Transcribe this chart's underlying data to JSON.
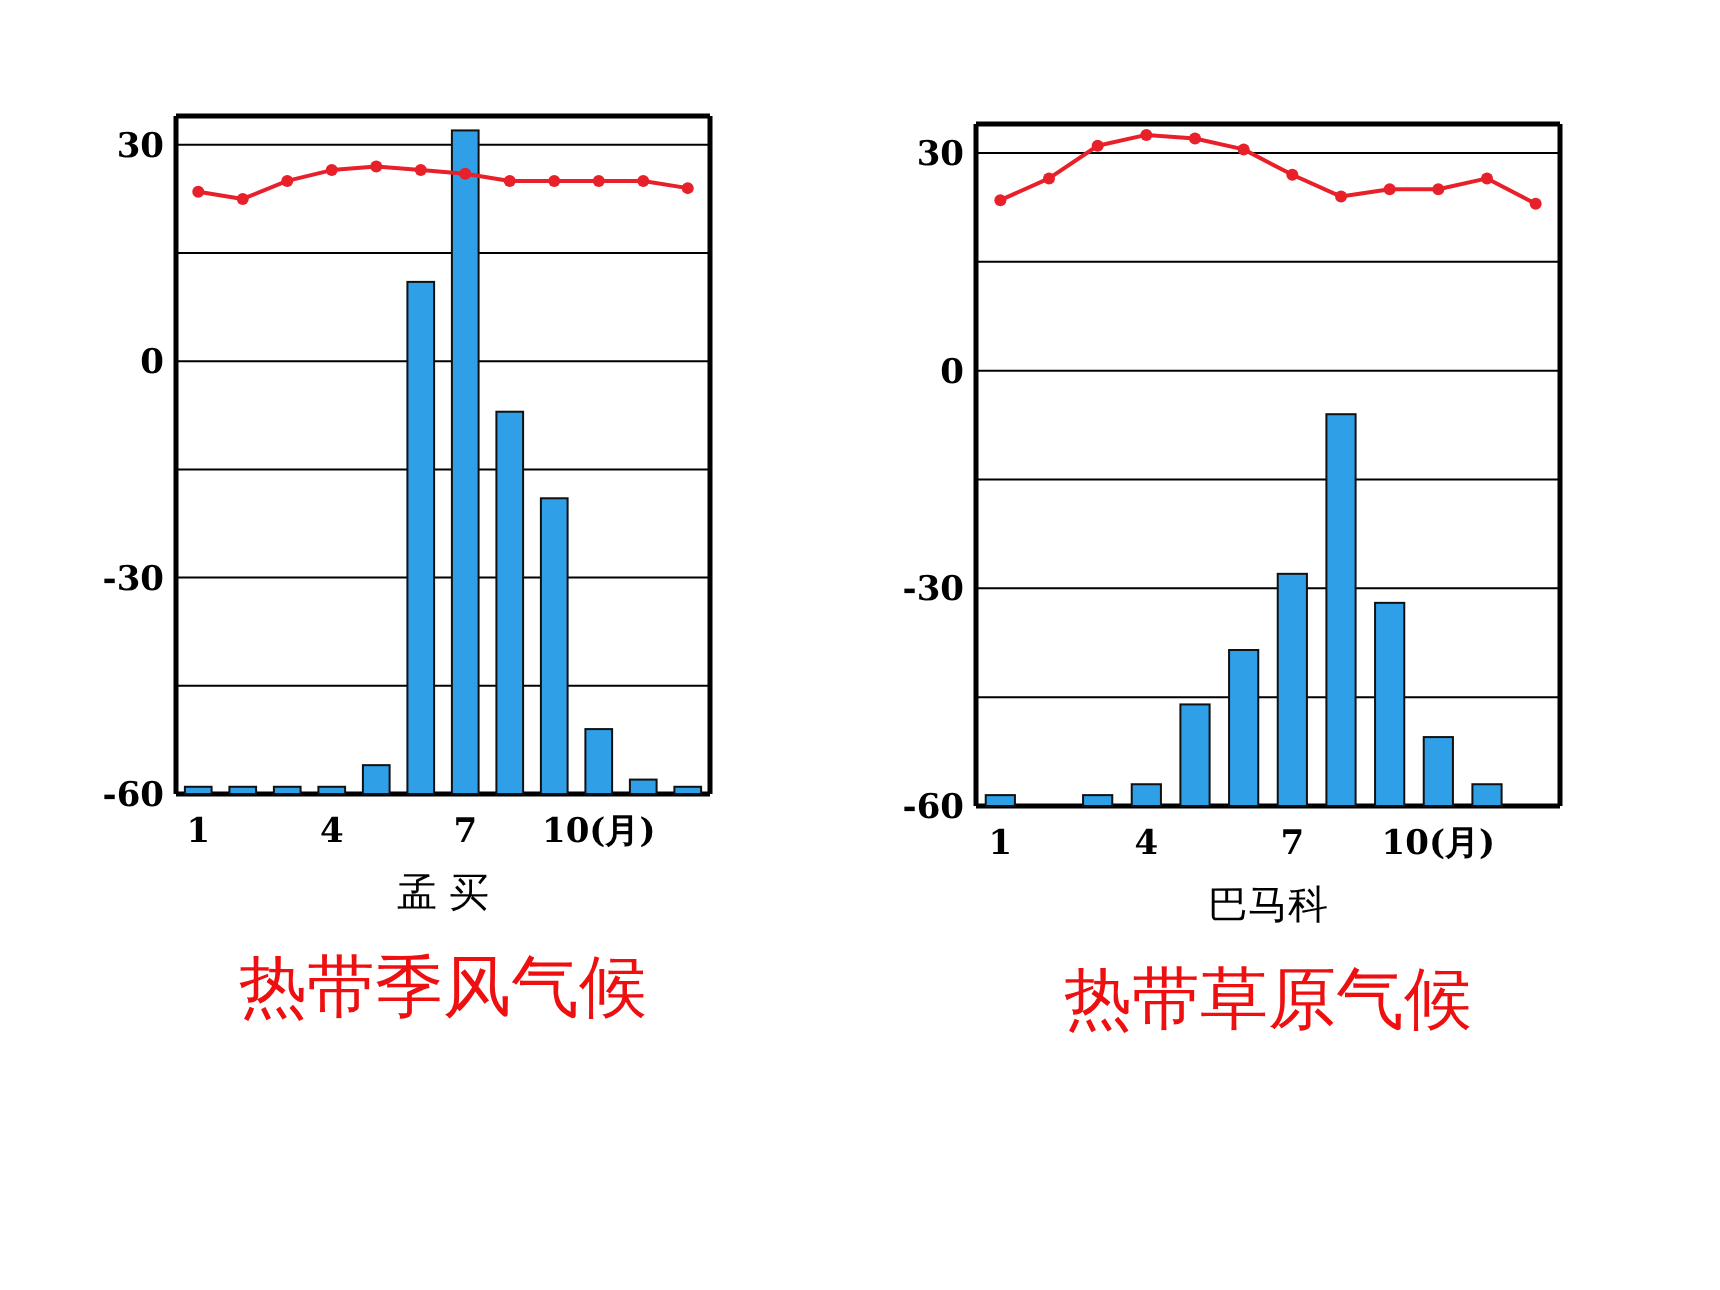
{
  "chart_data": [
    {
      "type": "bar",
      "title": "热带季风气候",
      "xlabel": "孟 买",
      "categories": [
        "1",
        null,
        null,
        "4",
        null,
        null,
        "7",
        null,
        null,
        "10(月)",
        null,
        null
      ],
      "series": [
        {
          "type": "bar",
          "color": "#2f9fe8",
          "base": [
            -60,
            -60,
            -60,
            -60,
            -60,
            -60,
            -60,
            -60,
            -60,
            -60,
            -60,
            -60
          ],
          "values": [
            1,
            1,
            1,
            1,
            4,
            71,
            92,
            53,
            41,
            9,
            2,
            1
          ]
        },
        {
          "type": "line",
          "color": "#e8202a",
          "marker": "circle",
          "values": [
            23.5,
            22.5,
            25,
            26.5,
            27,
            26.5,
            26,
            25,
            25,
            25,
            25,
            24
          ]
        }
      ],
      "ylim": [
        -60,
        34
      ],
      "yticks": [
        30,
        {
          "value": 15,
          "label": null
        },
        0,
        {
          "value": -15,
          "label": null
        },
        -30,
        {
          "value": -45,
          "label": null
        },
        -60
      ],
      "grid": "y"
    },
    {
      "type": "bar",
      "title": "热带草原气候",
      "xlabel": "巴马科",
      "categories": [
        "1",
        null,
        null,
        "4",
        null,
        null,
        "7",
        null,
        null,
        "10(月)",
        null,
        null
      ],
      "series": [
        {
          "type": "bar",
          "color": "#2f9fe8",
          "base": [
            -60,
            null,
            -60,
            -60,
            -60,
            -60,
            -60,
            -60,
            -60,
            -60,
            -60,
            null
          ],
          "values": [
            1.5,
            null,
            1.5,
            3,
            14,
            21.5,
            32,
            54,
            28,
            9.5,
            3,
            null
          ]
        },
        {
          "type": "line",
          "color": "#e8202a",
          "marker": "circle",
          "values": [
            23.5,
            26.5,
            31,
            32.5,
            32,
            30.5,
            27,
            24,
            25,
            25,
            26.5,
            23
          ]
        }
      ],
      "ylim": [
        -60,
        34
      ],
      "yticks": [
        30,
        {
          "value": 15,
          "label": null
        },
        0,
        {
          "value": -15,
          "label": null
        },
        -30,
        {
          "value": -45,
          "label": null
        },
        -60
      ],
      "grid": "y"
    }
  ]
}
